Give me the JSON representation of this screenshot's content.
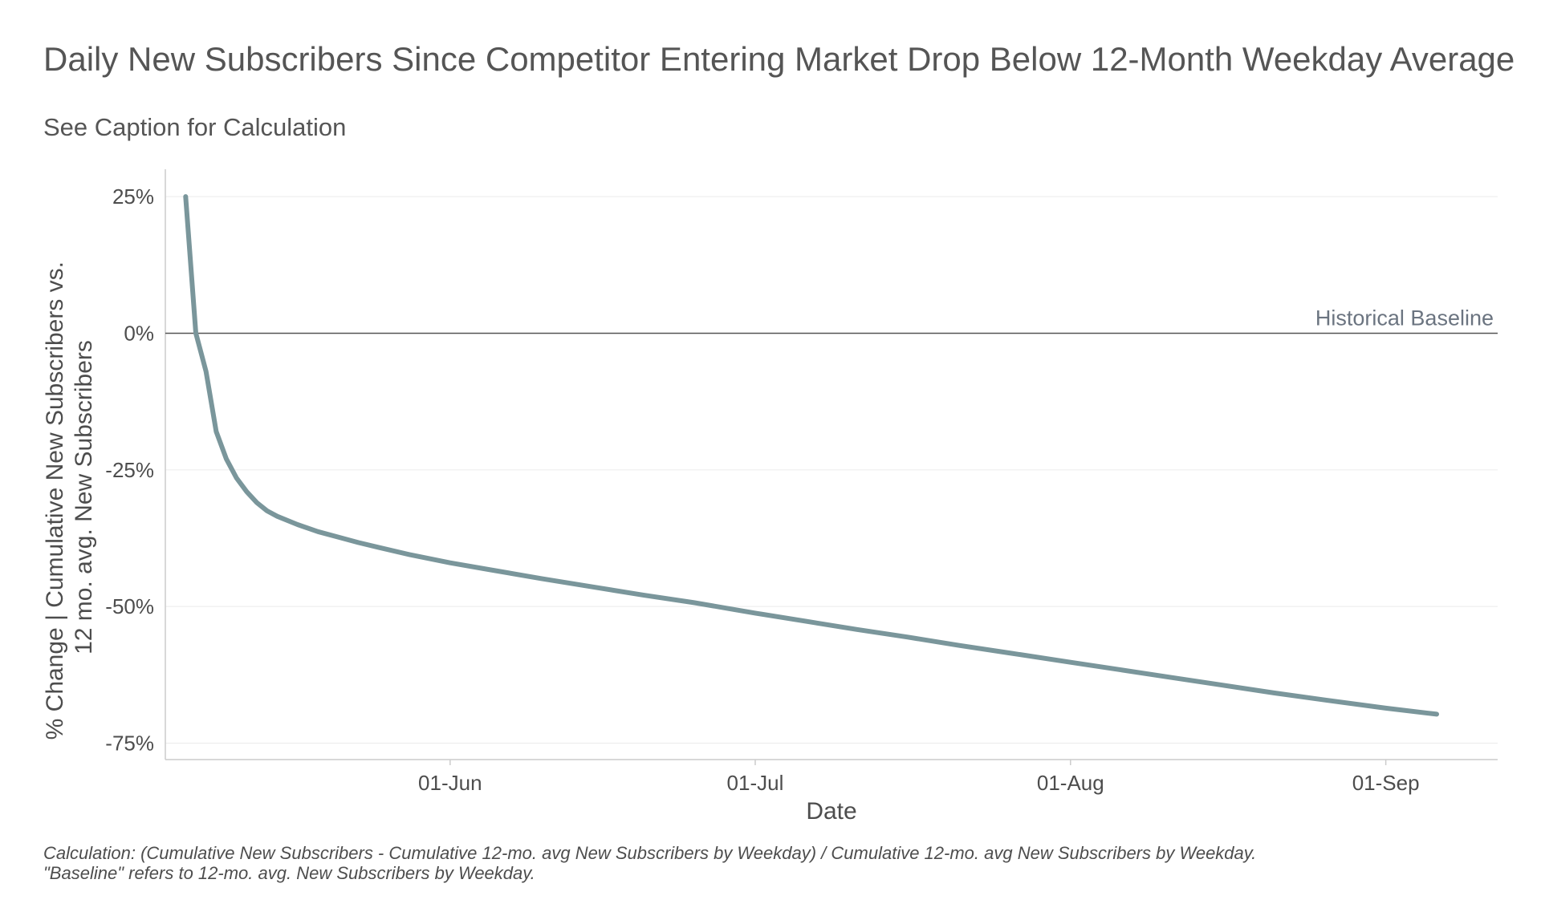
{
  "chart_data": {
    "type": "line",
    "title": "Daily New Subscribers Since Competitor Entering Market Drop Below 12-Month Weekday Average",
    "subtitle": "See Caption for Calculation",
    "xlabel": "Date",
    "ylabel_lines": [
      "% Change | Cumulative New Subscribers vs.",
      "12 mo. avg. New Subscribers"
    ],
    "x_ticks": [
      {
        "date": "2020-06-01",
        "label": "01-Jun"
      },
      {
        "date": "2020-07-01",
        "label": "01-Jul"
      },
      {
        "date": "2020-08-01",
        "label": "01-Aug"
      },
      {
        "date": "2020-09-01",
        "label": "01-Sep"
      }
    ],
    "y_ticks": [
      {
        "value": 25,
        "label": "25%"
      },
      {
        "value": 0,
        "label": "0%"
      },
      {
        "value": -25,
        "label": "-25%"
      },
      {
        "value": -50,
        "label": "-50%"
      },
      {
        "value": -75,
        "label": "-75%"
      }
    ],
    "xlim": [
      "2020-05-04",
      "2020-09-12"
    ],
    "ylim": [
      -78,
      30
    ],
    "grid": true,
    "reference_line": {
      "y": 0,
      "label": "Historical Baseline"
    },
    "caption_lines": [
      "Calculation: (Cumulative New Subscribers - Cumulative 12-mo. avg New Subscribers by Weekday) / Cumulative 12-mo. avg New Subscribers by Weekday.",
      "\"Baseline\" refers to 12-mo. avg. New Subscribers by Weekday."
    ],
    "colors": {
      "line": "#7a969b",
      "baseline": "#555555",
      "grid": "#ebebeb",
      "axis": "#cccccc"
    },
    "series": [
      {
        "x": [
          "2020-05-06",
          "2020-05-07",
          "2020-05-08",
          "2020-05-09",
          "2020-05-10",
          "2020-05-11",
          "2020-05-12",
          "2020-05-13",
          "2020-05-14",
          "2020-05-15",
          "2020-05-17",
          "2020-05-19",
          "2020-05-21",
          "2020-05-23",
          "2020-05-25",
          "2020-05-28",
          "2020-06-01",
          "2020-06-05",
          "2020-06-10",
          "2020-06-15",
          "2020-06-20",
          "2020-06-25",
          "2020-07-01",
          "2020-07-06",
          "2020-07-11",
          "2020-07-16",
          "2020-07-21",
          "2020-07-26",
          "2020-08-01",
          "2020-08-06",
          "2020-08-11",
          "2020-08-16",
          "2020-08-21",
          "2020-08-26",
          "2020-09-01",
          "2020-09-06"
        ],
        "y": [
          25,
          0,
          -7,
          -18,
          -23,
          -26.5,
          -29,
          -31,
          -32.5,
          -33.5,
          -35,
          -36.3,
          -37.3,
          -38.3,
          -39.2,
          -40.5,
          -42,
          -43.3,
          -44.9,
          -46.4,
          -47.9,
          -49.3,
          -51.2,
          -52.7,
          -54.2,
          -55.6,
          -57.1,
          -58.5,
          -60.2,
          -61.6,
          -63.0,
          -64.4,
          -65.8,
          -67.1,
          -68.6,
          -69.7
        ]
      }
    ]
  }
}
